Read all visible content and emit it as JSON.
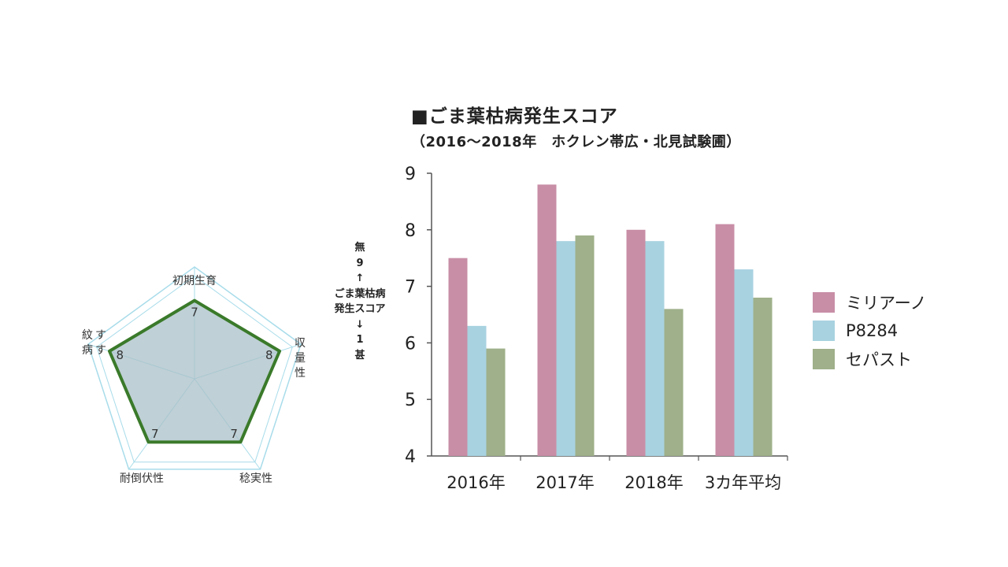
{
  "chart_data": [
    {
      "type": "radar",
      "axes": [
        "初期生育",
        "収量性",
        "稔実性",
        "耐倒伏性",
        "すす紋病"
      ],
      "values": [
        7,
        8,
        7,
        7,
        8
      ],
      "value_labels": [
        "7",
        "8",
        "7",
        "7",
        "8"
      ],
      "rmax": 10,
      "colors": {
        "line": "#3a7a2a",
        "fill": "#a9c0c8",
        "grid": "#a8dcea"
      }
    },
    {
      "type": "bar",
      "title": "■ごま葉枯病発生スコア",
      "subtitle": "（2016～2018年　ホクレン帯広・北見試験圃）",
      "ylabel_lines": [
        "無",
        "9",
        "↑",
        "ごま葉枯病",
        "発生スコア",
        "↓",
        "1",
        "甚"
      ],
      "categories": [
        "2016年",
        "2017年",
        "2018年",
        "3カ年平均"
      ],
      "series": [
        {
          "name": "ミリアーノ",
          "color": "#c88ea6",
          "values": [
            7.5,
            8.8,
            8.0,
            8.1
          ]
        },
        {
          "name": "P8284",
          "color": "#a8d2e0",
          "values": [
            6.3,
            7.8,
            7.8,
            7.3
          ]
        },
        {
          "name": "セパスト",
          "color": "#9fb08a",
          "values": [
            5.9,
            7.9,
            6.6,
            6.8
          ]
        }
      ],
      "ylim": [
        4,
        9
      ],
      "yticks": [
        4,
        5,
        6,
        7,
        8,
        9
      ],
      "grid": false,
      "legend_position": "right"
    }
  ]
}
